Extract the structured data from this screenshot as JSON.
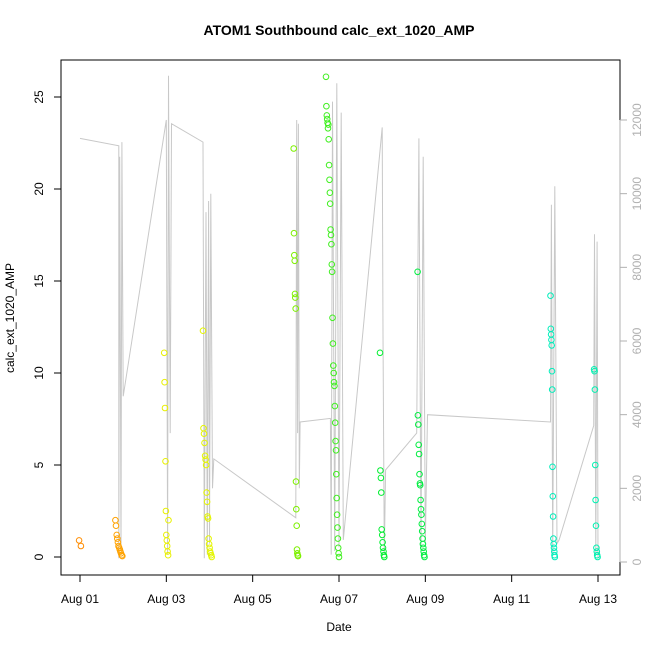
{
  "chart_data": {
    "type": "scatter",
    "title": "ATOM1 Southbound calc_ext_1020_AMP",
    "xlabel": "Date",
    "ylabel": "calc_ext_1020_AMP",
    "x_ticks": [
      "Aug 01",
      "Aug 03",
      "Aug 05",
      "Aug 07",
      "Aug 09",
      "Aug 11",
      "Aug 13"
    ],
    "x_range": [
      "2023-08-01",
      "2023-08-13"
    ],
    "ylim": [
      0,
      26
    ],
    "y_ticks": [
      0,
      5,
      10,
      15,
      20,
      25
    ],
    "y2lim": [
      0,
      13000
    ],
    "y2_ticks": [
      0,
      2000,
      4000,
      6000,
      8000,
      10000,
      12000
    ],
    "grid": false,
    "colors": {
      "line": "#c8c8c8",
      "aug01": "#ff8c00",
      "aug02": "#ffa200",
      "aug03": "#e8f000",
      "aug04": "#e4f500",
      "aug06": "#7df000",
      "aug07": "#40ef20",
      "aug08": "#00f030",
      "aug09": "#00ee40",
      "aug12": "#00eebb",
      "aug13": "#00f0b0"
    },
    "series": [
      {
        "role": "points",
        "clusters": [
          {
            "day": 0.0,
            "spread": 0.02,
            "color": "#ff8c00",
            "values": [
              0.9,
              0.6
            ]
          },
          {
            "day": 0.9,
            "spread": 0.08,
            "color": "#ffa200",
            "values": [
              2.0,
              1.7,
              1.2,
              1.0,
              0.8,
              0.6,
              0.5,
              0.4,
              0.3,
              0.2,
              0.1,
              0.05
            ]
          },
          {
            "day": 2.0,
            "spread": 0.05,
            "color": "#e8f000",
            "values": [
              11.1,
              9.5,
              8.1,
              5.2,
              2.5,
              1.2,
              0.9,
              0.6,
              0.3,
              0.1,
              2.0
            ]
          },
          {
            "day": 2.95,
            "spread": 0.1,
            "color": "#e4f500",
            "values": [
              12.3,
              7.0,
              6.7,
              6.2,
              5.5,
              5.3,
              5.0,
              3.5,
              3.0,
              2.2,
              2.1,
              1.0,
              0.7,
              0.5,
              0.3,
              0.2,
              0.1,
              0.0
            ]
          },
          {
            "day": 5.0,
            "spread": 0.05,
            "color": "#7df000",
            "values": [
              22.2,
              17.6,
              16.4,
              16.1,
              14.3,
              14.1,
              13.5,
              4.1,
              2.6,
              1.7,
              0.4,
              0.2,
              0.1,
              0.05
            ]
          },
          {
            "day": 5.85,
            "spread": 0.15,
            "color": "#40ef20",
            "values": [
              26.1,
              24.5,
              24.0,
              23.8,
              23.6,
              23.3,
              23.5,
              22.7,
              21.3,
              20.5,
              19.8,
              19.2,
              17.8,
              17.5,
              17.0,
              15.9,
              15.5,
              13.0,
              11.6,
              10.4,
              10.0,
              9.5,
              9.3,
              8.2,
              7.3,
              6.3,
              5.8,
              4.5,
              3.2,
              2.3,
              1.6,
              1.0,
              0.5,
              0.2,
              0.0
            ]
          },
          {
            "day": 7.0,
            "spread": 0.05,
            "color": "#00f030",
            "values": [
              11.1,
              4.7,
              4.3,
              3.5,
              1.5,
              1.2,
              0.8,
              0.5,
              0.3,
              0.1,
              0.0
            ]
          },
          {
            "day": 7.9,
            "spread": 0.08,
            "color": "#00ee40",
            "values": [
              15.5,
              7.7,
              7.2,
              6.1,
              5.6,
              4.5,
              4.0,
              3.9,
              3.1,
              2.6,
              2.3,
              1.8,
              1.4,
              1.0,
              0.7,
              0.5,
              0.3,
              0.1,
              0.0
            ]
          },
          {
            "day": 10.95,
            "spread": 0.05,
            "color": "#00eebb",
            "values": [
              14.2,
              12.4,
              12.1,
              11.8,
              11.5,
              10.1,
              9.1,
              4.9,
              3.3,
              2.2,
              1.0,
              0.7,
              0.5,
              0.3,
              0.1,
              0.0
            ]
          },
          {
            "day": 11.95,
            "spread": 0.04,
            "color": "#00f0b0",
            "values": [
              10.2,
              10.1,
              9.1,
              5.0,
              3.1,
              1.7,
              0.5,
              0.3,
              0.1,
              0.0
            ]
          }
        ]
      },
      {
        "role": "line",
        "axis": "right",
        "points": [
          [
            0.0,
            11500
          ],
          [
            0.9,
            11300
          ],
          [
            0.9,
            100
          ],
          [
            0.92,
            11000
          ],
          [
            0.95,
            300
          ],
          [
            0.97,
            11400
          ],
          [
            1.0,
            4500
          ],
          [
            2.0,
            12000
          ],
          [
            2.03,
            200
          ],
          [
            2.05,
            13200
          ],
          [
            2.07,
            8000
          ],
          [
            2.09,
            3500
          ],
          [
            2.12,
            11900
          ],
          [
            2.85,
            11400
          ],
          [
            2.88,
            100
          ],
          [
            2.92,
            9500
          ],
          [
            2.95,
            200
          ],
          [
            2.98,
            9800
          ],
          [
            3.0,
            500
          ],
          [
            3.03,
            10000
          ],
          [
            3.07,
            2000
          ],
          [
            3.1,
            2800
          ],
          [
            5.0,
            1200
          ],
          [
            5.02,
            12000
          ],
          [
            5.04,
            3500
          ],
          [
            5.06,
            11900
          ],
          [
            5.08,
            2000
          ],
          [
            5.1,
            3800
          ],
          [
            5.8,
            3900
          ],
          [
            5.82,
            200
          ],
          [
            5.85,
            12500
          ],
          [
            5.9,
            300
          ],
          [
            5.95,
            13000
          ],
          [
            6.0,
            400
          ],
          [
            6.05,
            12200
          ],
          [
            6.1,
            600
          ],
          [
            7.0,
            11800
          ],
          [
            7.02,
            6200
          ],
          [
            7.05,
            200
          ],
          [
            7.08,
            2500
          ],
          [
            7.8,
            3500
          ],
          [
            7.85,
            11500
          ],
          [
            7.9,
            300
          ],
          [
            7.95,
            11000
          ],
          [
            8.0,
            500
          ],
          [
            8.05,
            4000
          ],
          [
            10.9,
            3800
          ],
          [
            10.92,
            9700
          ],
          [
            10.95,
            200
          ],
          [
            11.0,
            10200
          ],
          [
            11.05,
            500
          ],
          [
            11.1,
            600
          ],
          [
            11.9,
            3700
          ],
          [
            11.92,
            8900
          ],
          [
            11.95,
            200
          ],
          [
            11.98,
            8700
          ],
          [
            12.0,
            100
          ]
        ]
      }
    ]
  }
}
